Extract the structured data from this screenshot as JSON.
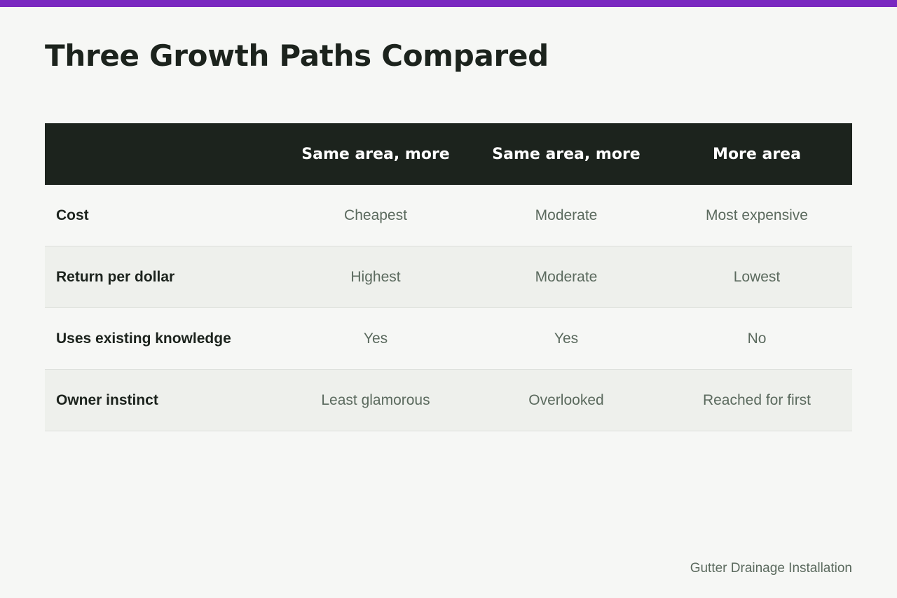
{
  "title": "Three Growth Paths Compared",
  "table": {
    "headers": [
      "",
      "Same area, more",
      "Same area, more",
      "More area"
    ],
    "rows": [
      {
        "label": "Cost",
        "values": [
          "Cheapest",
          "Moderate",
          "Most expensive"
        ]
      },
      {
        "label": "Return per dollar",
        "values": [
          "Highest",
          "Moderate",
          "Lowest"
        ]
      },
      {
        "label": "Uses existing knowledge",
        "values": [
          "Yes",
          "Yes",
          "No"
        ]
      },
      {
        "label": "Owner instinct",
        "values": [
          "Least glamorous",
          "Overlooked",
          "Reached for first"
        ]
      }
    ]
  },
  "footer": "Gutter Drainage Installation",
  "colors": {
    "accent_bar": "#7a28c0",
    "header_bg": "#1c231d",
    "page_bg": "#f6f7f5",
    "alt_row_bg": "#eef0ec"
  }
}
